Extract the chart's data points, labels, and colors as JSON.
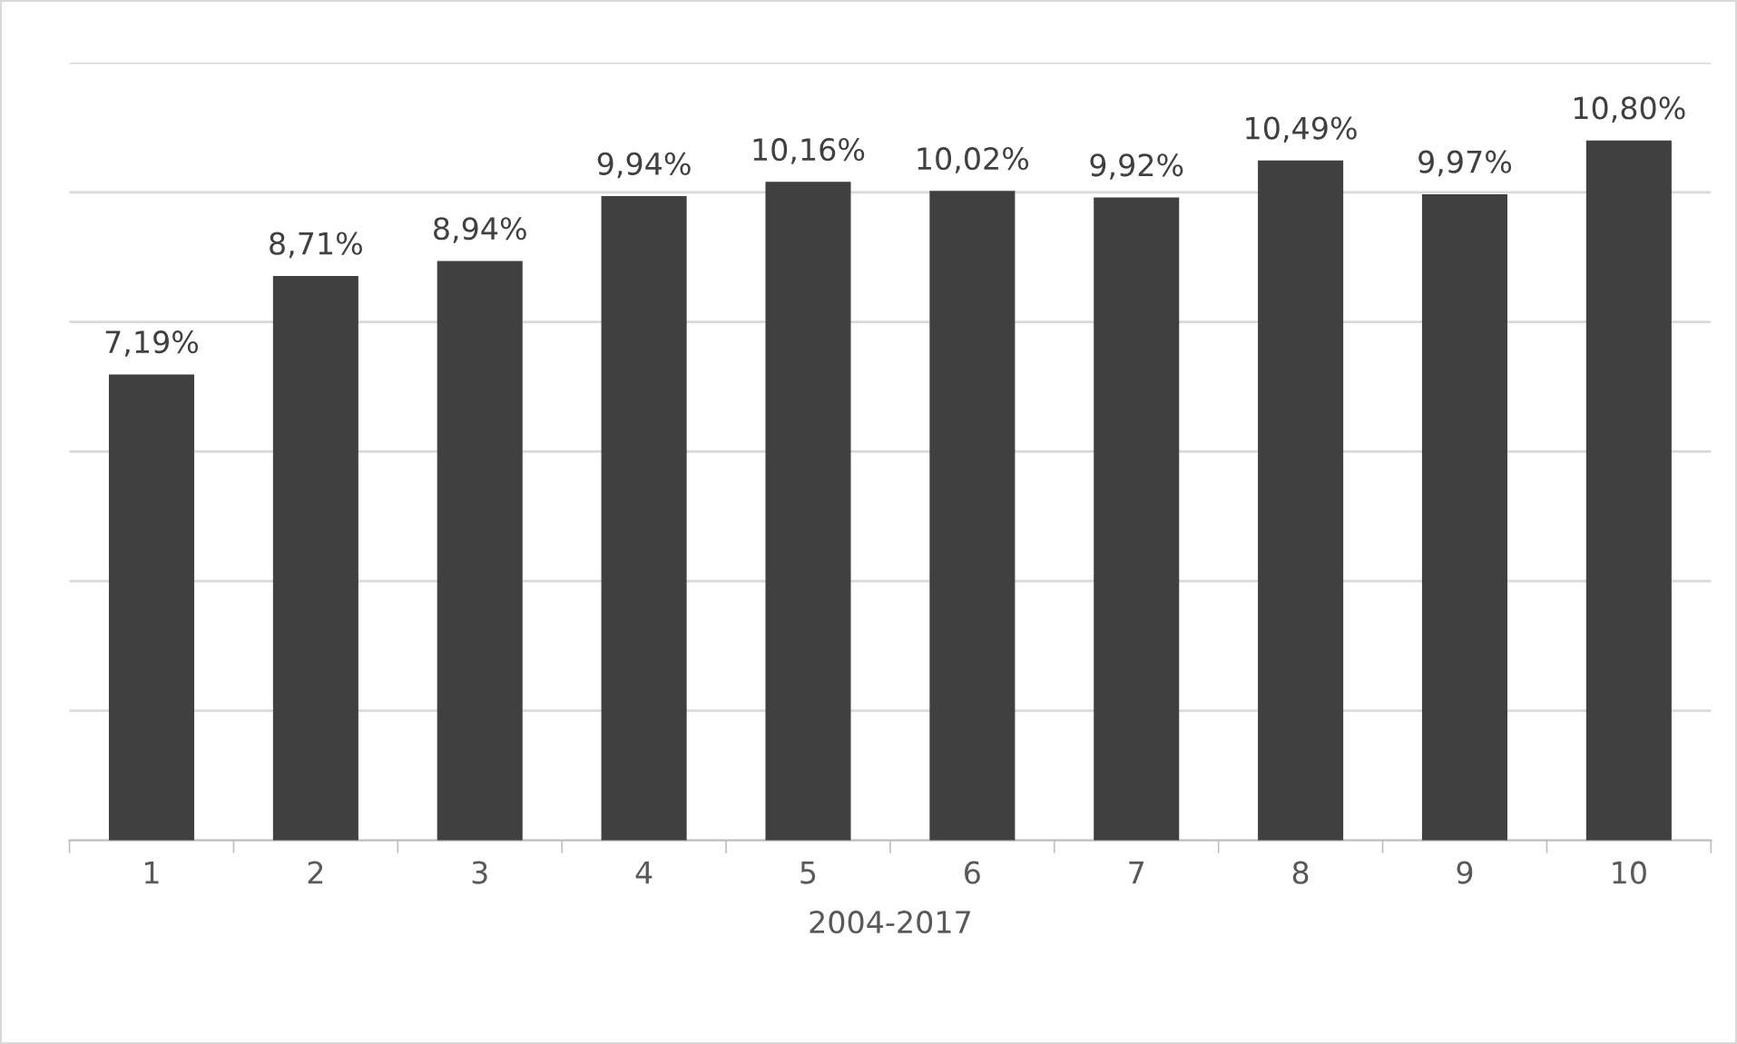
{
  "chart_data": {
    "type": "bar",
    "xlabel": "2004-2017",
    "categories": [
      "1",
      "2",
      "3",
      "4",
      "5",
      "6",
      "7",
      "8",
      "9",
      "10"
    ],
    "values": [
      7.19,
      8.71,
      8.94,
      9.94,
      10.16,
      10.02,
      9.92,
      10.49,
      9.97,
      10.8
    ],
    "value_labels": [
      "7,19%",
      "8,71%",
      "8,94%",
      "9,94%",
      "10,16%",
      "10,02%",
      "9,92%",
      "10,49%",
      "9,97%",
      "10,80%"
    ],
    "color": "#404040",
    "ylim": [
      0,
      12
    ],
    "yticks": [
      {
        "value": 0,
        "label": null
      },
      {
        "value": 2,
        "label": null
      },
      {
        "value": 4,
        "label": null
      },
      {
        "value": 6,
        "label": null
      },
      {
        "value": 8,
        "label": null
      },
      {
        "value": 10,
        "label": null
      },
      {
        "value": 12,
        "label": null
      }
    ],
    "tick_labels": "x",
    "grid": "y"
  }
}
